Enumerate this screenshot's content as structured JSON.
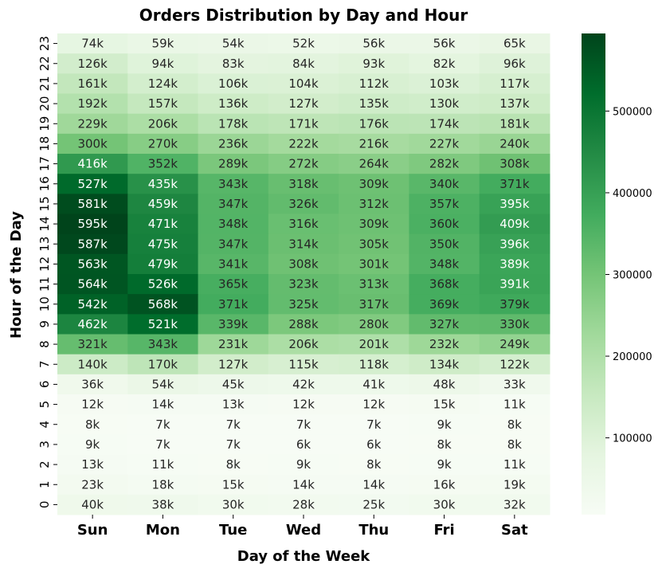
{
  "chart_data": {
    "type": "heatmap",
    "title": "Orders Distribution by Day and Hour",
    "xlabel": "Day of the Week",
    "ylabel": "Hour of the Day",
    "x_categories": [
      "Sun",
      "Mon",
      "Tue",
      "Wed",
      "Thu",
      "Fri",
      "Sat"
    ],
    "y_categories": [
      "23",
      "22",
      "21",
      "20",
      "19",
      "18",
      "17",
      "16",
      "15",
      "14",
      "13",
      "12",
      "11",
      "10",
      "9",
      "8",
      "7",
      "6",
      "5",
      "4",
      "3",
      "2",
      "1",
      "0"
    ],
    "labels": [
      [
        "74k",
        "59k",
        "54k",
        "52k",
        "56k",
        "56k",
        "65k"
      ],
      [
        "126k",
        "94k",
        "83k",
        "84k",
        "93k",
        "82k",
        "96k"
      ],
      [
        "161k",
        "124k",
        "106k",
        "104k",
        "112k",
        "103k",
        "117k"
      ],
      [
        "192k",
        "157k",
        "136k",
        "127k",
        "135k",
        "130k",
        "137k"
      ],
      [
        "229k",
        "206k",
        "178k",
        "171k",
        "176k",
        "174k",
        "181k"
      ],
      [
        "300k",
        "270k",
        "236k",
        "222k",
        "216k",
        "227k",
        "240k"
      ],
      [
        "416k",
        "352k",
        "289k",
        "272k",
        "264k",
        "282k",
        "308k"
      ],
      [
        "527k",
        "435k",
        "343k",
        "318k",
        "309k",
        "340k",
        "371k"
      ],
      [
        "581k",
        "459k",
        "347k",
        "326k",
        "312k",
        "357k",
        "395k"
      ],
      [
        "595k",
        "471k",
        "348k",
        "316k",
        "309k",
        "360k",
        "409k"
      ],
      [
        "587k",
        "475k",
        "347k",
        "314k",
        "305k",
        "350k",
        "396k"
      ],
      [
        "563k",
        "479k",
        "341k",
        "308k",
        "301k",
        "348k",
        "389k"
      ],
      [
        "564k",
        "526k",
        "365k",
        "323k",
        "313k",
        "368k",
        "391k"
      ],
      [
        "542k",
        "568k",
        "371k",
        "325k",
        "317k",
        "369k",
        "379k"
      ],
      [
        "462k",
        "521k",
        "339k",
        "288k",
        "280k",
        "327k",
        "330k"
      ],
      [
        "321k",
        "343k",
        "231k",
        "206k",
        "201k",
        "232k",
        "249k"
      ],
      [
        "140k",
        "170k",
        "127k",
        "115k",
        "118k",
        "134k",
        "122k"
      ],
      [
        "36k",
        "54k",
        "45k",
        "42k",
        "41k",
        "48k",
        "33k"
      ],
      [
        "12k",
        "14k",
        "13k",
        "12k",
        "12k",
        "15k",
        "11k"
      ],
      [
        "8k",
        "7k",
        "7k",
        "7k",
        "7k",
        "9k",
        "8k"
      ],
      [
        "9k",
        "7k",
        "7k",
        "6k",
        "6k",
        "8k",
        "8k"
      ],
      [
        "13k",
        "11k",
        "8k",
        "9k",
        "8k",
        "9k",
        "11k"
      ],
      [
        "23k",
        "18k",
        "15k",
        "14k",
        "14k",
        "16k",
        "19k"
      ],
      [
        "40k",
        "38k",
        "30k",
        "28k",
        "25k",
        "30k",
        "32k"
      ]
    ],
    "values": [
      [
        74000,
        59000,
        54000,
        52000,
        56000,
        56000,
        65000
      ],
      [
        126000,
        94000,
        83000,
        84000,
        93000,
        82000,
        96000
      ],
      [
        161000,
        124000,
        106000,
        104000,
        112000,
        103000,
        117000
      ],
      [
        192000,
        157000,
        136000,
        127000,
        135000,
        130000,
        137000
      ],
      [
        229000,
        206000,
        178000,
        171000,
        176000,
        174000,
        181000
      ],
      [
        300000,
        270000,
        236000,
        222000,
        216000,
        227000,
        240000
      ],
      [
        416000,
        352000,
        289000,
        272000,
        264000,
        282000,
        308000
      ],
      [
        527000,
        435000,
        343000,
        318000,
        309000,
        340000,
        371000
      ],
      [
        581000,
        459000,
        347000,
        326000,
        312000,
        357000,
        395000
      ],
      [
        595000,
        471000,
        348000,
        316000,
        309000,
        360000,
        409000
      ],
      [
        587000,
        475000,
        347000,
        314000,
        305000,
        350000,
        396000
      ],
      [
        563000,
        479000,
        341000,
        308000,
        301000,
        348000,
        389000
      ],
      [
        564000,
        526000,
        365000,
        323000,
        313000,
        368000,
        391000
      ],
      [
        542000,
        568000,
        371000,
        325000,
        317000,
        369000,
        379000
      ],
      [
        462000,
        521000,
        339000,
        288000,
        280000,
        327000,
        330000
      ],
      [
        321000,
        343000,
        231000,
        206000,
        201000,
        232000,
        249000
      ],
      [
        140000,
        170000,
        127000,
        115000,
        118000,
        134000,
        122000
      ],
      [
        36000,
        54000,
        45000,
        42000,
        41000,
        48000,
        33000
      ],
      [
        12000,
        14000,
        13000,
        12000,
        12000,
        15000,
        11000
      ],
      [
        8000,
        7000,
        7000,
        7000,
        7000,
        9000,
        8000
      ],
      [
        9000,
        7000,
        7000,
        6000,
        6000,
        8000,
        8000
      ],
      [
        13000,
        11000,
        8000,
        9000,
        8000,
        9000,
        11000
      ],
      [
        23000,
        18000,
        15000,
        14000,
        14000,
        16000,
        19000
      ],
      [
        40000,
        38000,
        30000,
        28000,
        25000,
        30000,
        32000
      ]
    ],
    "colorbar": {
      "min": 6000,
      "max": 595000,
      "ticks": [
        100000,
        200000,
        300000,
        400000,
        500000
      ],
      "tick_labels": [
        "100000",
        "200000",
        "300000",
        "400000",
        "500000"
      ]
    },
    "colormap": [
      "#f7fcf5",
      "#e5f5e0",
      "#c7e9c0",
      "#a1d99b",
      "#74c476",
      "#41ab5d",
      "#238b45",
      "#006d2c",
      "#00441b"
    ],
    "grid": false,
    "legend": "colorbar-right"
  }
}
